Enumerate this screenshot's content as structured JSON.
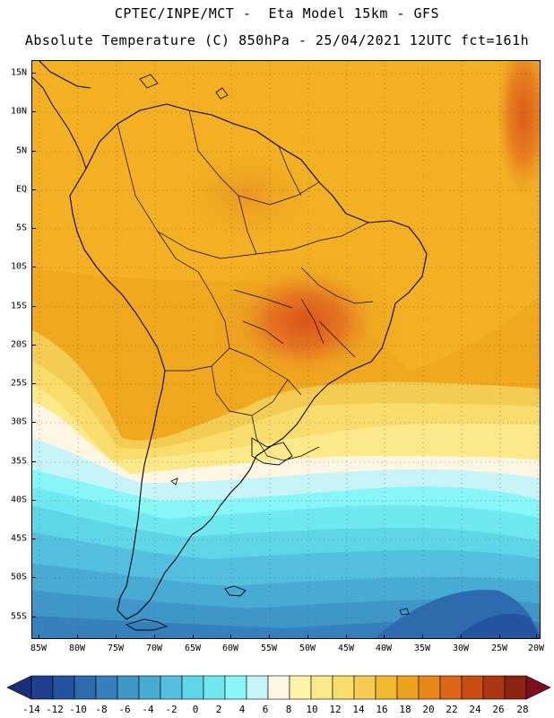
{
  "header": {
    "line1": "CPTEC/INPE/MCT -  Eta Model 15km - GFS",
    "line2": "Absolute Temperature (C) 850hPa - 25/04/2021 12UTC fct=161h"
  },
  "axes": {
    "lat_labels": [
      "15N",
      "10N",
      "5N",
      "EQ",
      "5S",
      "10S",
      "15S",
      "20S",
      "25S",
      "30S",
      "35S",
      "40S",
      "45S",
      "50S",
      "55S"
    ],
    "lon_labels": [
      "85W",
      "80W",
      "75W",
      "70W",
      "65W",
      "60W",
      "55W",
      "50W",
      "45W",
      "40W",
      "35W",
      "30W",
      "25W",
      "20W"
    ]
  },
  "colorbar": {
    "labels": [
      "-14",
      "-12",
      "-10",
      "-8",
      "-6",
      "-4",
      "-2",
      "0",
      "2",
      "4",
      "6",
      "8",
      "10",
      "12",
      "14",
      "16",
      "18",
      "20",
      "22",
      "24",
      "26",
      "28"
    ],
    "colors": [
      "#1e3f8f",
      "#24549f",
      "#2d6aae",
      "#3680bd",
      "#3e96c9",
      "#47abd4",
      "#52c0de",
      "#5fd5e8",
      "#6fe8f0",
      "#88f6f6",
      "#c6f4f9",
      "#fdf6e3",
      "#fdf4a8",
      "#fbe98a",
      "#f8dc6c",
      "#f5cc52",
      "#f0b92f",
      "#eda21e",
      "#e8861a",
      "#dd6516",
      "#c94d12",
      "#ab350f",
      "#8c2210"
    ],
    "left_arrow": "#1b2f78",
    "right_arrow": "#7a0e1e"
  }
}
